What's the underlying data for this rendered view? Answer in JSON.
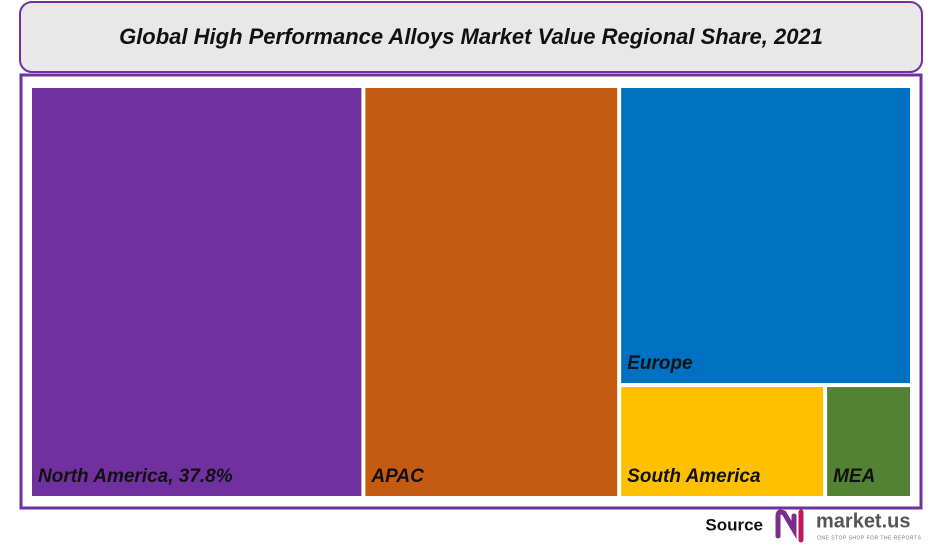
{
  "chart_data": {
    "type": "treemap",
    "title": "Global High Performance Alloys Market Value Regional Share, 2021",
    "categories": [
      "North America, 37.8%",
      "APAC",
      "Europe",
      "South America",
      "MEA"
    ],
    "values": [
      37.8,
      29.0,
      24.1,
      6.4,
      2.7
    ],
    "colors": [
      "#7030a0",
      "#c55a11",
      "#0070c0",
      "#ffc000",
      "#548235"
    ]
  },
  "footer": {
    "source": "Source",
    "logo": "market.us",
    "tagline": "ONE STOP SHOP FOR THE REPORTS"
  }
}
